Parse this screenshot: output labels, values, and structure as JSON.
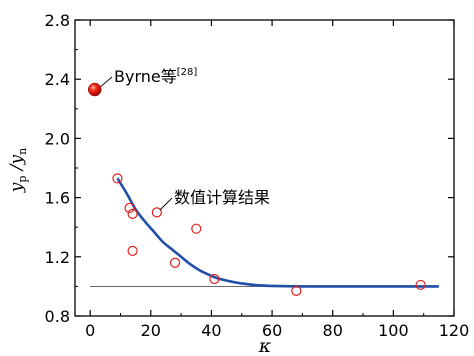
{
  "chart_data": {
    "type": "scatter",
    "xlabel": "κ",
    "ylabel": {
      "main1": "y",
      "sub1": "p",
      "sep": " /",
      "main2": "y",
      "sub2": "n"
    },
    "xlim": [
      -5,
      120
    ],
    "ylim": [
      0.8,
      2.8
    ],
    "xticks": [
      0,
      20,
      40,
      60,
      80,
      100,
      120
    ],
    "yticks": [
      0.8,
      1.2,
      1.6,
      2.0,
      2.4,
      2.8
    ],
    "ytick_labels": [
      "0.8",
      "1.2",
      "1.6",
      "2.0",
      "2.4",
      "2.8"
    ],
    "grid": false,
    "series": [
      {
        "name": "数值计算结果",
        "marker": "open-circle",
        "color": "#e02020",
        "points": [
          {
            "x": 9,
            "y": 1.73
          },
          {
            "x": 13,
            "y": 1.53
          },
          {
            "x": 14,
            "y": 1.49
          },
          {
            "x": 14,
            "y": 1.24
          },
          {
            "x": 22,
            "y": 1.5
          },
          {
            "x": 28,
            "y": 1.16
          },
          {
            "x": 35,
            "y": 1.39
          },
          {
            "x": 41,
            "y": 1.05
          },
          {
            "x": 68,
            "y": 0.97
          },
          {
            "x": 109,
            "y": 1.01
          }
        ]
      },
      {
        "name": "Byrne等",
        "name_sup": "[28]",
        "marker": "filled-sphere",
        "color": "#e01010",
        "points": [
          {
            "x": 1.5,
            "y": 2.33
          }
        ]
      }
    ],
    "fit_curve": {
      "color": "#1f4fa8",
      "points": [
        [
          9,
          1.73
        ],
        [
          12,
          1.63
        ],
        [
          15,
          1.52
        ],
        [
          18,
          1.44
        ],
        [
          21,
          1.37
        ],
        [
          24,
          1.3
        ],
        [
          27,
          1.25
        ],
        [
          30,
          1.2
        ],
        [
          33,
          1.15
        ],
        [
          36,
          1.11
        ],
        [
          39,
          1.08
        ],
        [
          42,
          1.055
        ],
        [
          46,
          1.035
        ],
        [
          50,
          1.02
        ],
        [
          55,
          1.008
        ],
        [
          60,
          1.003
        ],
        [
          70,
          1.0
        ],
        [
          85,
          1.0
        ],
        [
          100,
          1.0
        ],
        [
          115,
          1.0
        ]
      ]
    },
    "reference_line": {
      "y": 1.0,
      "x_start": 0,
      "x_end": 115,
      "color": "#555555"
    }
  }
}
